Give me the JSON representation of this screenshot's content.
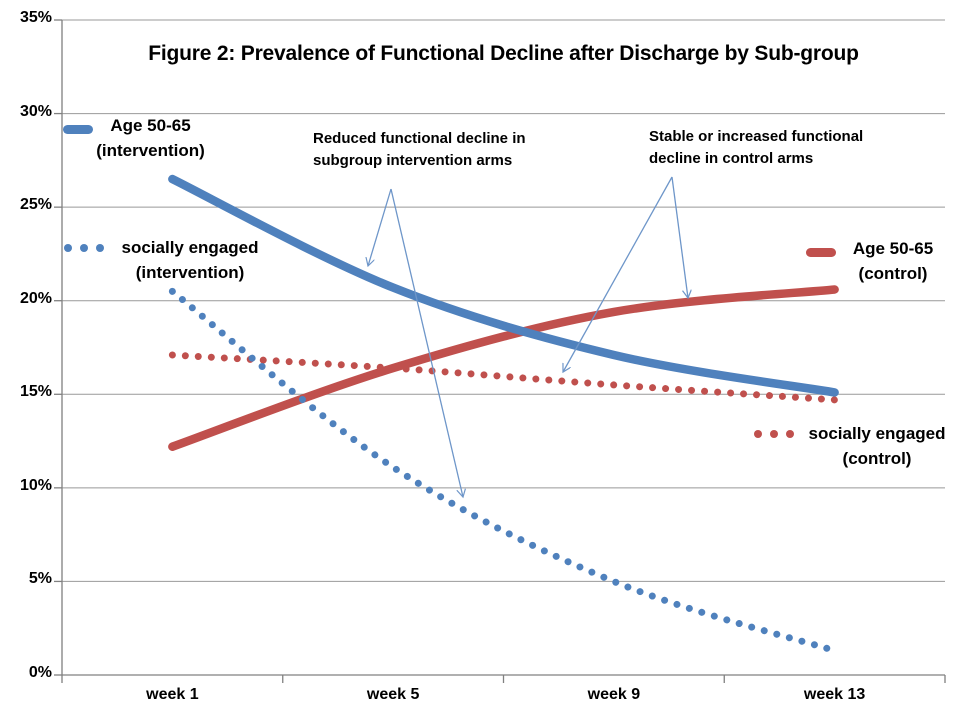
{
  "chart": {
    "title": "Figure 2: Prevalence of Functional Decline after Discharge by Sub-group"
  },
  "chart_data": {
    "type": "line",
    "title": "Figure 2: Prevalence of Functional Decline after Discharge by Sub-group",
    "categories": [
      "week 1",
      "week 5",
      "week 9",
      "week 13"
    ],
    "series": [
      {
        "name": "Age 50-65 (intervention)",
        "color": "#4F81BD",
        "style": "solid",
        "values": [
          26.5,
          20.7,
          17.1,
          15.1
        ]
      },
      {
        "name": "socially engaged (intervention)",
        "color": "#4F81BD",
        "style": "dotted",
        "values": [
          20.5,
          11.1,
          5.0,
          1.3
        ]
      },
      {
        "name": "Age 50-65 (control)",
        "color": "#C0504D",
        "style": "solid",
        "values": [
          12.2,
          16.4,
          19.4,
          20.6
        ]
      },
      {
        "name": "socially engaged (control)",
        "color": "#C0504D",
        "style": "dotted",
        "values": [
          17.1,
          16.4,
          15.5,
          14.7
        ]
      }
    ],
    "ylim": [
      0,
      35
    ],
    "y_tick_values": [
      0,
      5,
      10,
      15,
      20,
      25,
      30,
      35
    ],
    "y_tick_labels": [
      "0%",
      "5%",
      "10%",
      "15%",
      "20%",
      "25%",
      "30%",
      "35%"
    ],
    "grid": "horizontal",
    "legend_position": "manual-inside",
    "callout_arrows": [
      {
        "from": [
          391,
          189
        ],
        "to": [
          368,
          266
        ]
      },
      {
        "from": [
          391,
          189
        ],
        "to": [
          463,
          497
        ]
      },
      {
        "from": [
          672,
          177
        ],
        "to": [
          563,
          372
        ]
      },
      {
        "from": [
          672,
          177
        ],
        "to": [
          688,
          298
        ]
      }
    ]
  },
  "legend": {
    "age_intervention": {
      "line1": "Age 50-65",
      "line2": "(intervention)"
    },
    "socially_intervention": {
      "line1": "socially engaged",
      "line2": "(intervention)"
    },
    "age_control": {
      "line1": "Age 50-65",
      "line2": "(control)"
    },
    "socially_control": {
      "line1": "socially engaged",
      "line2": "(control)"
    }
  },
  "annotations": {
    "intervention": {
      "line1": "Reduced functional decline in",
      "line2": "subgroup intervention arms"
    },
    "control": {
      "line1": "Stable or increased functional",
      "line2": "decline in control arms"
    }
  },
  "colors": {
    "blue": "#4F81BD",
    "red": "#C0504D",
    "arrow": "#6E96C9",
    "grid": "#999999",
    "axis": "#808080",
    "text": "#000000"
  }
}
